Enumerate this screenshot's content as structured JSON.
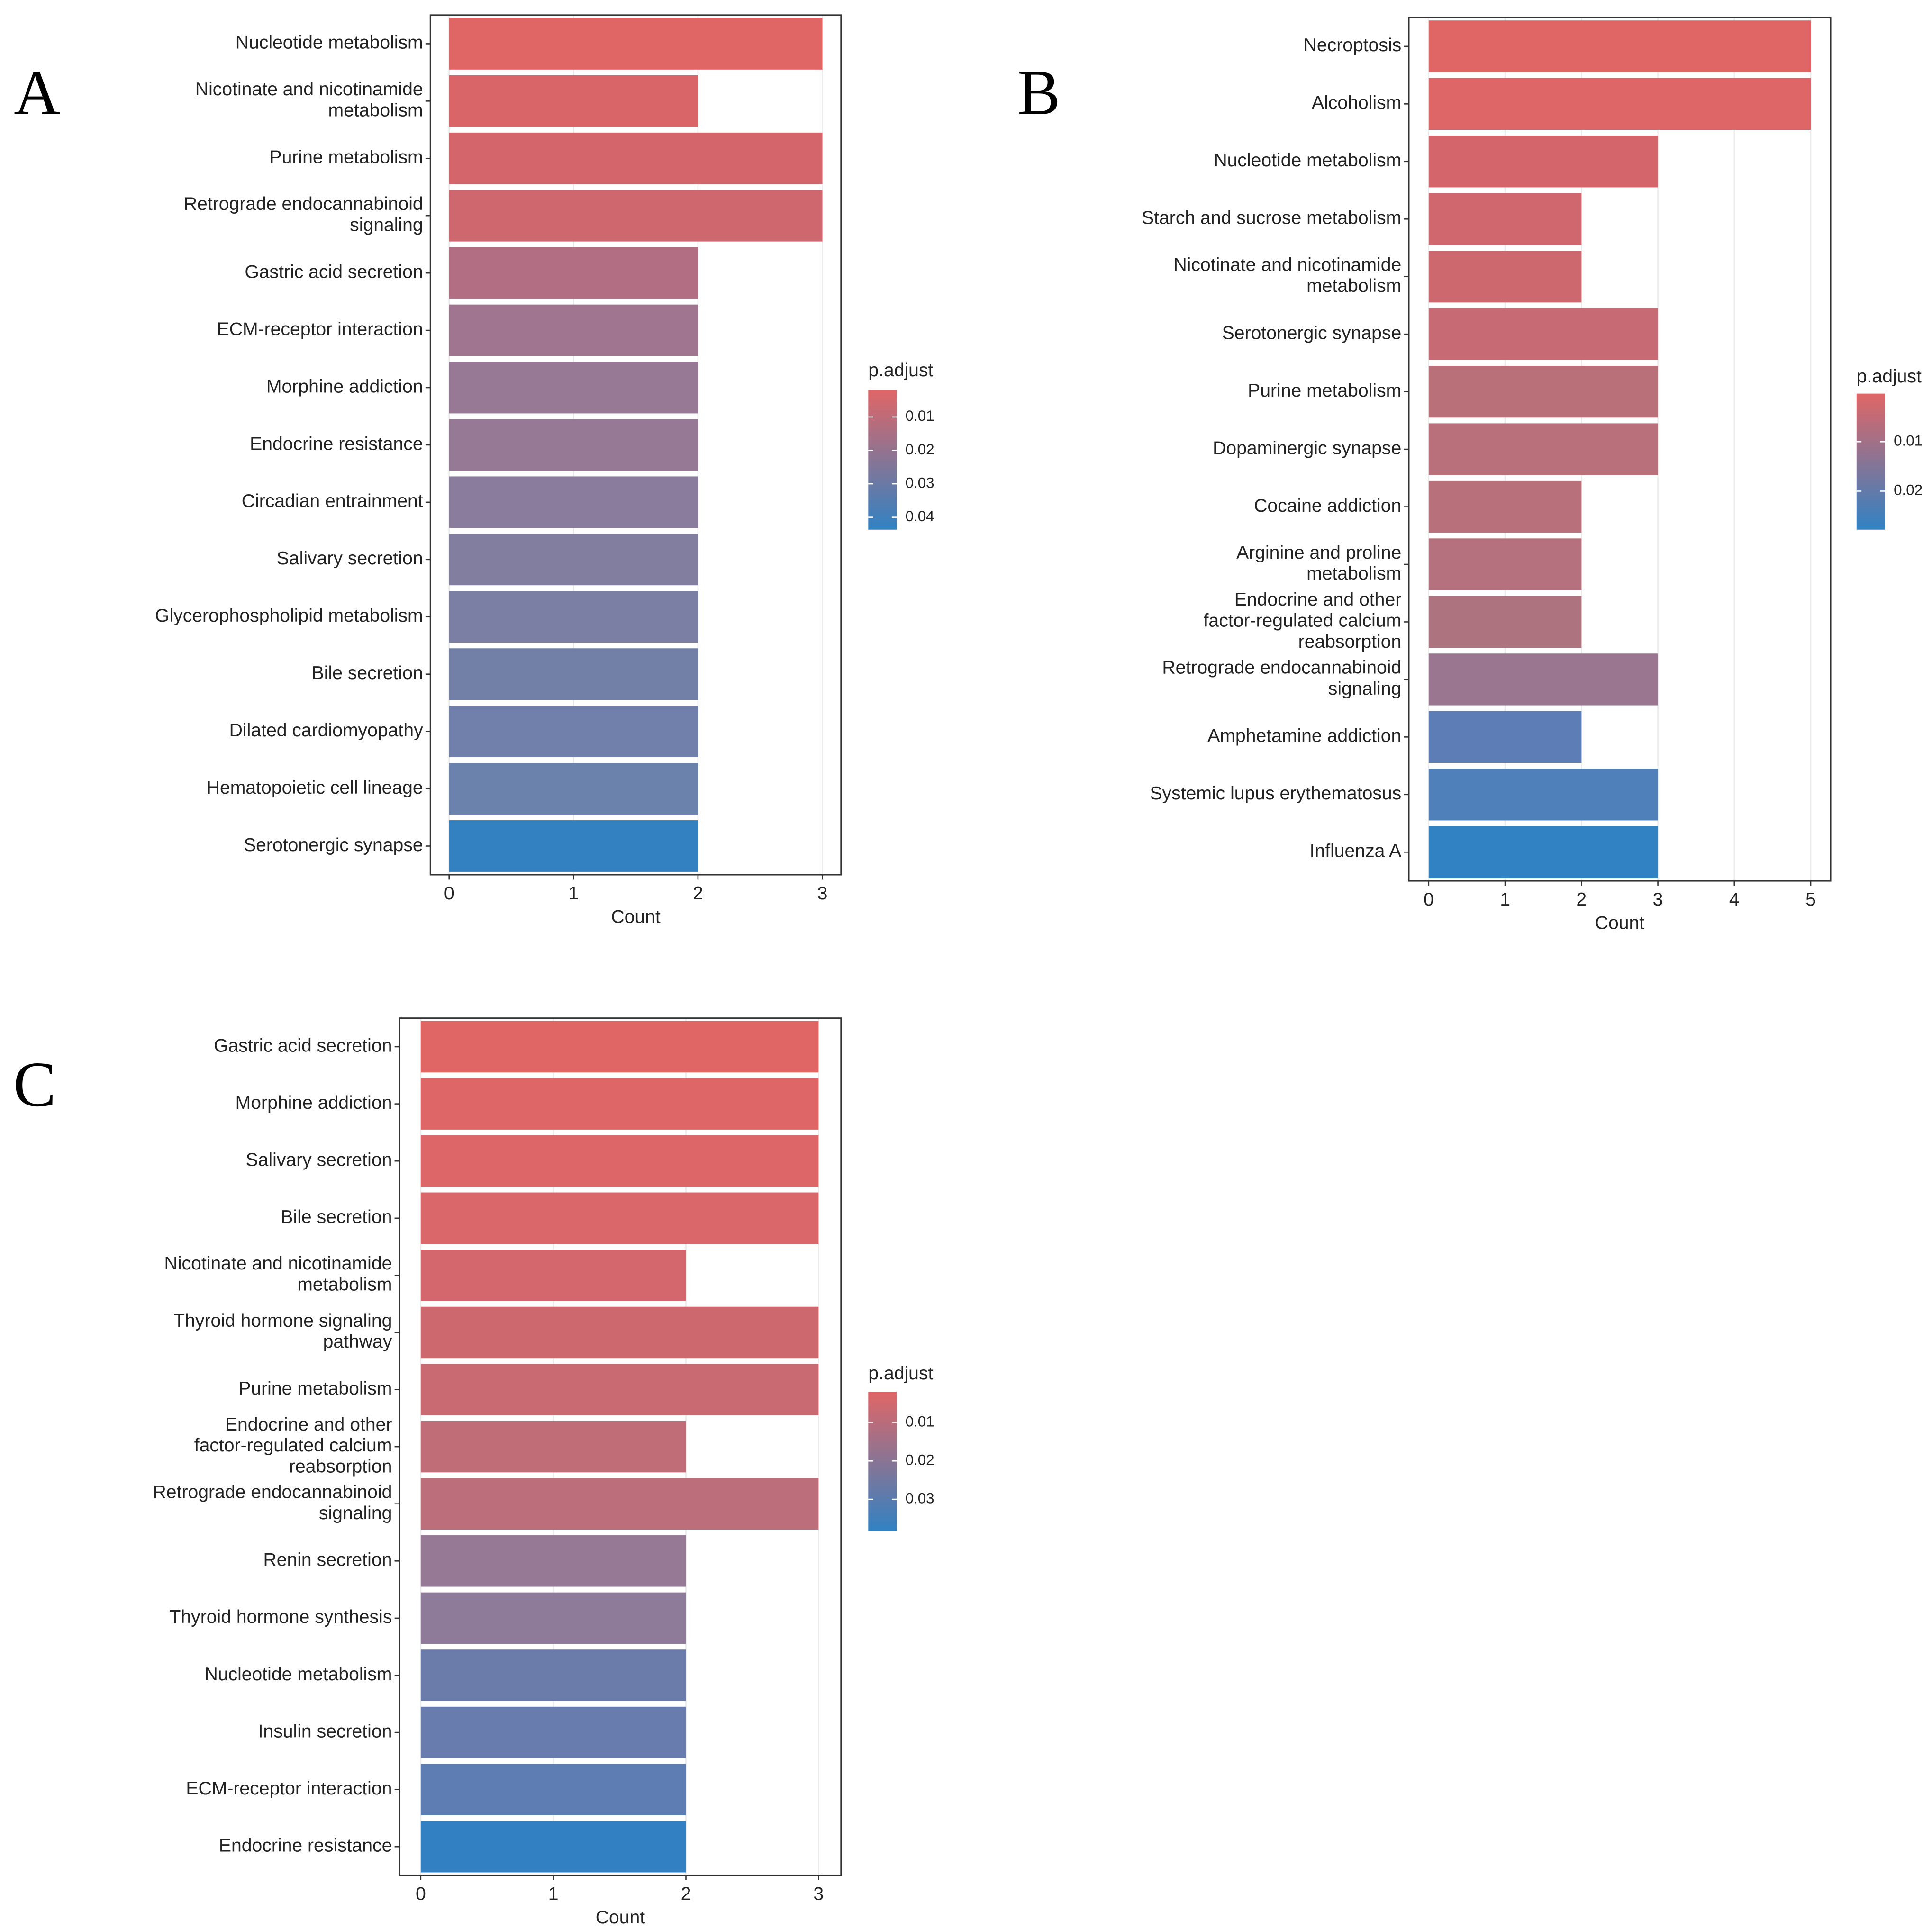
{
  "chart_data": [
    {
      "type": "bar",
      "orientation": "horizontal",
      "panel_label": "A",
      "xlabel": "Count",
      "categories": [
        "Nucleotide metabolism",
        "Nicotinate and nicotinamide\nmetabolism",
        "Purine metabolism",
        "Retrograde endocannabinoid\nsignaling",
        "Gastric acid secretion",
        "ECM-receptor interaction",
        "Morphine addiction",
        "Endocrine resistance",
        "Circadian entrainment",
        "Salivary secretion",
        "Glycerophospholipid metabolism",
        "Bile secretion",
        "Dilated cardiomyopathy",
        "Hematopoietic cell lineage",
        "Serotonergic synapse"
      ],
      "values": [
        3,
        2,
        3,
        3,
        2,
        2,
        2,
        2,
        2,
        2,
        2,
        2,
        2,
        2,
        2
      ],
      "colors": [
        "#e06666",
        "#d96568",
        "#d4666b",
        "#cf676f",
        "#b26f84",
        "#a0758f",
        "#977995",
        "#967995",
        "#897c9c",
        "#827ea0",
        "#7b7fa4",
        "#7280a8",
        "#7080aa",
        "#6b82ac",
        "#3481c1"
      ],
      "xlim": [
        -0.15,
        3.15
      ],
      "xticks": [
        0,
        1,
        2,
        3
      ],
      "grid": true,
      "colorbar": {
        "title": "p.adjust",
        "lim": [
          0.0019,
          0.0437
        ],
        "ticks": [
          0.01,
          0.02,
          0.03,
          0.04
        ],
        "colors": [
          "#e06666",
          "#3182c3"
        ]
      }
    },
    {
      "type": "bar",
      "orientation": "horizontal",
      "panel_label": "B",
      "xlabel": "Count",
      "categories": [
        "Necroptosis",
        "Alcoholism",
        "Nucleotide metabolism",
        "Starch and sucrose metabolism",
        "Nicotinate and nicotinamide\nmetabolism",
        "Serotonergic synapse",
        "Purine metabolism",
        "Dopaminergic synapse",
        "Cocaine addiction",
        "Arginine and proline\nmetabolism",
        "Endocrine and other\nfactor-regulated calcium\nreabsorption",
        "Retrograde endocannabinoid\nsignaling",
        "Amphetamine addiction",
        "Systemic lupus erythematosus",
        "Influenza A"
      ],
      "values": [
        5,
        5,
        3,
        2,
        2,
        3,
        3,
        3,
        2,
        2,
        2,
        3,
        2,
        3,
        3
      ],
      "colors": [
        "#e06666",
        "#df6667",
        "#d4666b",
        "#d0676e",
        "#cd686f",
        "#c76a73",
        "#b97079",
        "#b9707a",
        "#b8707b",
        "#b5717d",
        "#ad737f",
        "#9b7690",
        "#5c7db6",
        "#5080b9",
        "#3182c3"
      ],
      "xlim": [
        -0.26,
        5.26
      ],
      "xticks": [
        0,
        1,
        2,
        3,
        4,
        5
      ],
      "grid": true,
      "colorbar": {
        "title": "p.adjust",
        "lim": [
          0.00025,
          0.0278
        ],
        "ticks": [
          0.01,
          0.02
        ],
        "colors": [
          "#e06666",
          "#3182c3"
        ]
      }
    },
    {
      "type": "bar",
      "orientation": "horizontal",
      "panel_label": "C",
      "xlabel": "Count",
      "categories": [
        "Gastric acid secretion",
        "Morphine addiction",
        "Salivary secretion",
        "Bile secretion",
        "Nicotinate and nicotinamide\nmetabolism",
        "Thyroid hormone signaling\npathway",
        "Purine metabolism",
        "Endocrine and other\nfactor-regulated calcium\nreabsorption",
        "Retrograde endocannabinoid\nsignaling",
        "Renin secretion",
        "Thyroid hormone synthesis",
        "Nucleotide metabolism",
        "Insulin secretion",
        "ECM-receptor interaction",
        "Endocrine resistance"
      ],
      "values": [
        3,
        3,
        3,
        3,
        2,
        3,
        3,
        2,
        3,
        2,
        2,
        2,
        2,
        2,
        2
      ],
      "colors": [
        "#e06666",
        "#df6667",
        "#dc6668",
        "#da6769",
        "#d3676d",
        "#ce686f",
        "#c96a72",
        "#c06d77",
        "#bc6f7a",
        "#967995",
        "#8e7a99",
        "#6b7baa",
        "#687cad",
        "#5e7eb3",
        "#3280c1"
      ],
      "xlim": [
        -0.16,
        3.17
      ],
      "xticks": [
        0,
        1,
        2,
        3
      ],
      "grid": true,
      "colorbar": {
        "title": "p.adjust",
        "lim": [
          0.0019,
          0.0384
        ],
        "ticks": [
          0.01,
          0.02,
          0.03
        ],
        "colors": [
          "#e06666",
          "#3182c3"
        ]
      }
    }
  ]
}
